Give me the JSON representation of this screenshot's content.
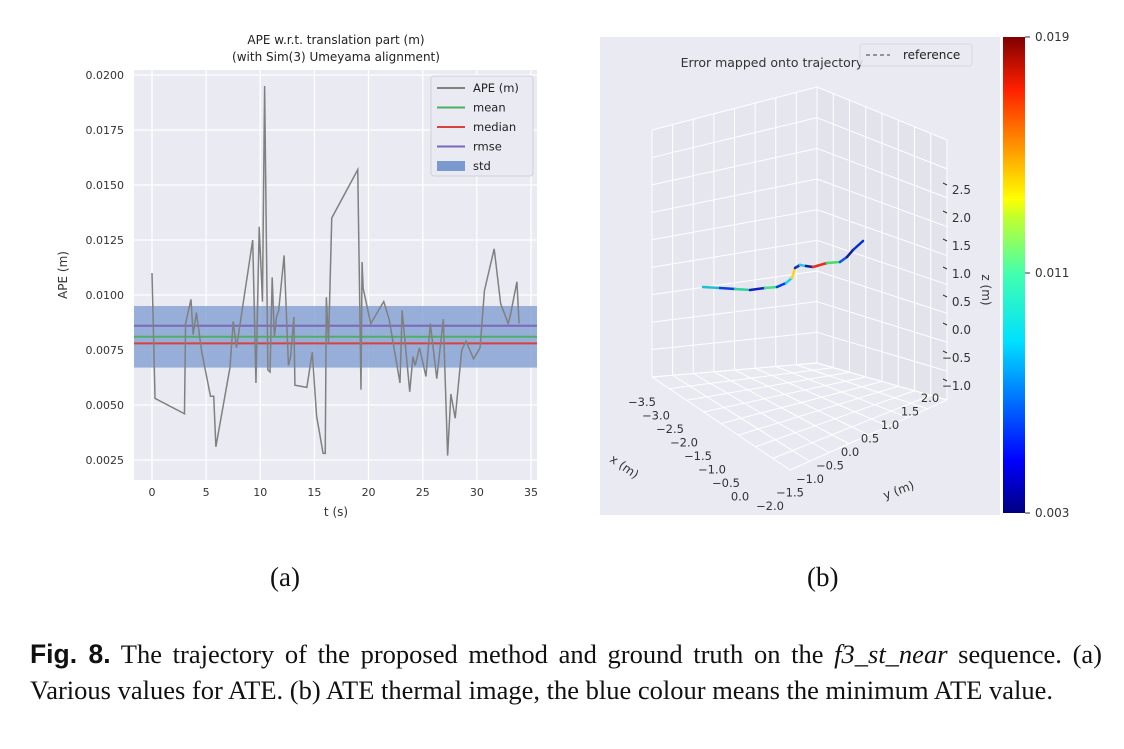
{
  "chart_data": [
    {
      "type": "line",
      "title": "APE w.r.t. translation part (m)",
      "subtitle": "(with Sim(3) Umeyama alignment)",
      "xlabel": "t (s)",
      "ylabel": "APE (m)",
      "xlim": [
        -1.5,
        35.5
      ],
      "ylim": [
        0.0012,
        0.0202
      ],
      "xticks": [
        "0",
        "5",
        "10",
        "15",
        "20",
        "25",
        "30",
        "35"
      ],
      "yticks": [
        "0.0025",
        "0.0050",
        "0.0075",
        "0.0100",
        "0.0125",
        "0.0150",
        "0.0175",
        "0.0200"
      ],
      "grid": true,
      "legend_position": "top-right",
      "legend": [
        "APE (m)",
        "mean",
        "median",
        "rmse",
        "std"
      ],
      "colors": {
        "ape": "#808080",
        "mean": "#4daf64",
        "median": "#d9413c",
        "rmse": "#7a68b8",
        "std": "#7a99cf",
        "background": "#eaeaf2"
      },
      "stats": {
        "mean": 0.0081,
        "median": 0.0078,
        "rmse": 0.0086,
        "std_low": 0.0067,
        "std_high": 0.0095
      },
      "series": [
        {
          "name": "APE (m)",
          "x": [
            0,
            0.28,
            3,
            3.1,
            3.6,
            3.8,
            4.1,
            4.6,
            5.4,
            5.7,
            5.9,
            7.2,
            7.5,
            7.8,
            9.3,
            9.6,
            9.9,
            10.2,
            10.4,
            10.7,
            10.9,
            11.1,
            11.3,
            11.5,
            11.7,
            12.2,
            12.6,
            12.8,
            13.1,
            13.2,
            14.3,
            14.8,
            15.2,
            15.8,
            16.0,
            16.1,
            16.3,
            16.6,
            19.0,
            19.3,
            19.4,
            19.5,
            20.2,
            21.4,
            21.9,
            22.9,
            23.1,
            23.8,
            24.1,
            24.3,
            24.7,
            25.3,
            25.7,
            26.3,
            26.9,
            27.3,
            27.6,
            28.0,
            28.6,
            29.0,
            29.7,
            30.3,
            30.7,
            31.6,
            32.2,
            32.9,
            33.1,
            33.7,
            33.9
          ],
          "y": [
            0.011,
            0.0053,
            0.0046,
            0.0087,
            0.0098,
            0.0082,
            0.0092,
            0.0074,
            0.0054,
            0.0054,
            0.0031,
            0.0067,
            0.0088,
            0.0076,
            0.0125,
            0.006,
            0.0131,
            0.0097,
            0.0195,
            0.0066,
            0.0065,
            0.0108,
            0.0081,
            0.009,
            0.0093,
            0.0118,
            0.0068,
            0.0072,
            0.009,
            0.0059,
            0.0058,
            0.0074,
            0.0045,
            0.0028,
            0.0028,
            0.0099,
            0.0078,
            0.0135,
            0.0157,
            0.0057,
            0.0115,
            0.0103,
            0.0087,
            0.0097,
            0.0089,
            0.006,
            0.0093,
            0.0056,
            0.0072,
            0.0068,
            0.0076,
            0.0063,
            0.0087,
            0.0062,
            0.0089,
            0.0027,
            0.0055,
            0.0044,
            0.0075,
            0.0079,
            0.0071,
            0.0076,
            0.0102,
            0.0121,
            0.0096,
            0.0087,
            0.0091,
            0.0106,
            0.0087
          ]
        }
      ]
    },
    {
      "type": "line3d",
      "title": "Error mapped onto trajectory",
      "legend": [
        "reference"
      ],
      "xlabel": "x (m)",
      "ylabel": "y (m)",
      "zlabel": "z (m)",
      "xticks": [
        "−3.5",
        "−3.0",
        "−2.5",
        "−2.0",
        "−1.5",
        "−1.0",
        "−0.5",
        "0.0"
      ],
      "yticks": [
        "−2.0",
        "−1.5",
        "−1.0",
        "−0.5",
        "0.0",
        "0.5",
        "1.0",
        "1.5",
        "2.0"
      ],
      "zticks": [
        "2.5",
        "2.0",
        "1.5",
        "1.0",
        "0.5",
        "0.0",
        "−0.5",
        "−1.0"
      ],
      "colorbar": {
        "colormap": "jet",
        "min_label": "0.003",
        "mid_label": "0.011",
        "max_label": "0.019"
      }
    }
  ],
  "labels": {
    "a": "(a)",
    "b": "(b)"
  },
  "caption": {
    "fig": "Fig. 8.",
    "text1": " The trajectory of the proposed method and ground truth on the ",
    "seq": "f3_st_near",
    "text2": " sequence. (a) Various values for ATE. (b) ATE thermal image, the blue colour means the minimum ATE value."
  }
}
